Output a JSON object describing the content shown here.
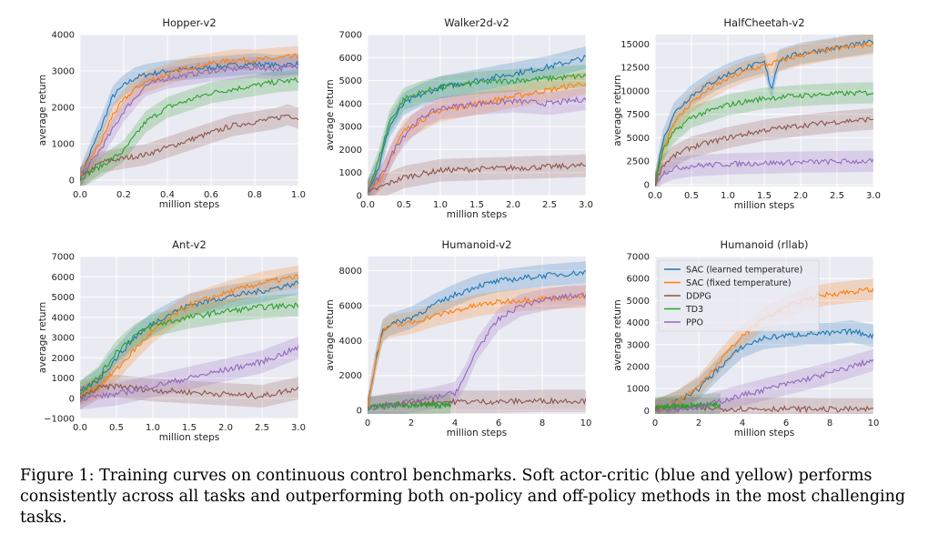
{
  "caption": {
    "label": "Figure 1:",
    "text": "Training curves on continuous control benchmarks. Soft actor-critic (blue and yellow) performs consistently across all tasks and outperforming both on-policy and off-policy methods in the most challenging tasks."
  },
  "colors": {
    "sac_learned": "#1f77b4",
    "sac_fixed": "#ff7f0e",
    "ddpg": "#8c564b",
    "td3": "#2ca02c",
    "ppo": "#9467bd",
    "plot_bg": "#eaeaf2",
    "grid": "#ffffff"
  },
  "legend": {
    "placement": "top-left of Humanoid (rllab) panel",
    "entries": [
      "SAC (learned temperature)",
      "SAC (fixed temperature)",
      "DDPG",
      "TD3",
      "PPO"
    ]
  },
  "chart_data": [
    {
      "type": "line",
      "title": "Hopper-v2",
      "xlabel": "million steps",
      "ylabel": "average return",
      "xlim": [
        0,
        1.0
      ],
      "ylim": [
        -150,
        4000
      ],
      "xticks": [
        0,
        0.2,
        0.4,
        0.6,
        0.8,
        1.0
      ],
      "xtick_labels": [
        "0.0",
        "0.2",
        "0.4",
        "0.6",
        "0.8",
        "1.0"
      ],
      "yticks": [
        0,
        1000,
        2000,
        3000,
        4000
      ],
      "ytick_labels": [
        "0",
        "1000",
        "2000",
        "3000",
        "4000"
      ],
      "grid": true,
      "series": [
        {
          "name": "SAC (learned temperature)",
          "x": [
            0,
            0.05,
            0.1,
            0.15,
            0.2,
            0.25,
            0.3,
            0.4,
            0.5,
            0.6,
            0.7,
            0.8,
            0.9,
            1.0
          ],
          "y": [
            50,
            800,
            1500,
            2300,
            2600,
            2800,
            2900,
            3000,
            3050,
            3100,
            3150,
            3200,
            3150,
            3200
          ]
        },
        {
          "name": "SAC (fixed temperature)",
          "x": [
            0,
            0.05,
            0.1,
            0.15,
            0.2,
            0.25,
            0.3,
            0.4,
            0.5,
            0.6,
            0.7,
            0.8,
            0.9,
            1.0
          ],
          "y": [
            50,
            600,
            1100,
            1800,
            2200,
            2500,
            2700,
            2900,
            3100,
            3200,
            3300,
            3300,
            3350,
            3400
          ]
        },
        {
          "name": "DDPG",
          "x": [
            0,
            0.1,
            0.2,
            0.3,
            0.4,
            0.5,
            0.6,
            0.7,
            0.8,
            0.9,
            0.95,
            1.0
          ],
          "y": [
            50,
            500,
            600,
            700,
            900,
            1100,
            1300,
            1500,
            1600,
            1700,
            1800,
            1700
          ]
        },
        {
          "name": "TD3",
          "x": [
            0,
            0.1,
            0.2,
            0.3,
            0.4,
            0.5,
            0.6,
            0.7,
            0.8,
            0.9,
            1.0
          ],
          "y": [
            50,
            400,
            800,
            1600,
            2000,
            2200,
            2400,
            2500,
            2600,
            2700,
            2750
          ]
        },
        {
          "name": "PPO",
          "x": [
            0,
            0.1,
            0.2,
            0.3,
            0.4,
            0.5,
            0.6,
            0.7,
            0.8,
            0.9,
            1.0
          ],
          "y": [
            50,
            900,
            1900,
            2600,
            2800,
            2900,
            3000,
            3050,
            3100,
            3050,
            3150
          ]
        }
      ]
    },
    {
      "type": "line",
      "title": "Walker2d-v2",
      "xlabel": "million steps",
      "ylabel": "average return",
      "xlim": [
        0,
        3.0
      ],
      "ylim": [
        0,
        7000
      ],
      "xticks": [
        0,
        0.5,
        1.0,
        1.5,
        2.0,
        2.5,
        3.0
      ],
      "xtick_labels": [
        "0.0",
        "0.5",
        "1.0",
        "1.5",
        "2.0",
        "2.5",
        "3.0"
      ],
      "yticks": [
        0,
        1000,
        2000,
        3000,
        4000,
        5000,
        6000,
        7000
      ],
      "ytick_labels": [
        "0",
        "1000",
        "2000",
        "3000",
        "4000",
        "5000",
        "6000",
        "7000"
      ],
      "grid": true,
      "series": [
        {
          "name": "SAC (learned temperature)",
          "x": [
            0,
            0.15,
            0.3,
            0.5,
            0.75,
            1.0,
            1.5,
            2.0,
            2.5,
            3.0
          ],
          "y": [
            200,
            1200,
            3000,
            4000,
            4400,
            4700,
            5000,
            5300,
            5600,
            6000
          ]
        },
        {
          "name": "SAC (fixed temperature)",
          "x": [
            0,
            0.2,
            0.3,
            0.5,
            0.75,
            1.0,
            1.5,
            2.0,
            2.5,
            3.0
          ],
          "y": [
            200,
            800,
            1600,
            2800,
            3300,
            3700,
            4000,
            4300,
            4600,
            4900
          ]
        },
        {
          "name": "DDPG",
          "x": [
            0,
            0.2,
            0.5,
            1.0,
            1.5,
            2.0,
            2.5,
            3.0
          ],
          "y": [
            100,
            400,
            800,
            1100,
            1150,
            1200,
            1250,
            1300
          ]
        },
        {
          "name": "TD3",
          "x": [
            0,
            0.15,
            0.3,
            0.5,
            0.75,
            1.0,
            1.5,
            2.0,
            2.5,
            3.0
          ],
          "y": [
            200,
            1500,
            3200,
            4200,
            4500,
            4700,
            4900,
            5000,
            5100,
            5200
          ]
        },
        {
          "name": "PPO",
          "x": [
            0,
            0.2,
            0.4,
            0.6,
            0.8,
            1.0,
            1.5,
            2.0,
            2.5,
            3.0
          ],
          "y": [
            200,
            900,
            2200,
            3000,
            3500,
            3800,
            4000,
            4100,
            4000,
            4200
          ]
        }
      ]
    },
    {
      "type": "line",
      "title": "HalfCheetah-v2",
      "xlabel": "million steps",
      "ylabel": "average return",
      "xlim": [
        0,
        3.0
      ],
      "ylim": [
        -200,
        16000
      ],
      "xticks": [
        0,
        0.5,
        1.0,
        1.5,
        2.0,
        2.5,
        3.0
      ],
      "xtick_labels": [
        "0.0",
        "0.5",
        "1.0",
        "1.5",
        "2.0",
        "2.5",
        "3.0"
      ],
      "yticks": [
        0,
        2500,
        5000,
        7500,
        10000,
        12500,
        15000
      ],
      "ytick_labels": [
        "0",
        "2500",
        "5000",
        "7500",
        "10000",
        "12500",
        "15000"
      ],
      "grid": true,
      "series": [
        {
          "name": "SAC (learned temperature)",
          "x": [
            0,
            0.1,
            0.25,
            0.5,
            0.75,
            1.0,
            1.25,
            1.5,
            1.6,
            1.7,
            2.0,
            2.5,
            3.0
          ],
          "y": [
            200,
            4500,
            7500,
            9500,
            10800,
            11800,
            12500,
            13000,
            10200,
            13300,
            14000,
            14600,
            15200
          ]
        },
        {
          "name": "SAC (fixed temperature)",
          "x": [
            0,
            0.1,
            0.25,
            0.5,
            0.75,
            1.0,
            1.25,
            1.5,
            2.0,
            2.5,
            3.0
          ],
          "y": [
            200,
            3500,
            6500,
            8800,
            10200,
            11300,
            12100,
            12700,
            13800,
            14500,
            15000
          ]
        },
        {
          "name": "DDPG",
          "x": [
            0,
            0.1,
            0.25,
            0.5,
            1.0,
            1.5,
            2.0,
            2.5,
            3.0
          ],
          "y": [
            100,
            2000,
            3000,
            4000,
            5000,
            5800,
            6300,
            6700,
            7000
          ]
        },
        {
          "name": "TD3",
          "x": [
            0,
            0.1,
            0.25,
            0.5,
            1.0,
            1.5,
            2.0,
            2.5,
            3.0
          ],
          "y": [
            100,
            3500,
            5500,
            7200,
            8500,
            9200,
            9500,
            9700,
            9800
          ]
        },
        {
          "name": "PPO",
          "x": [
            0,
            0.1,
            0.25,
            0.5,
            1.0,
            1.5,
            2.0,
            2.5,
            3.0
          ],
          "y": [
            100,
            1200,
            1700,
            2000,
            2200,
            2300,
            2400,
            2450,
            2500
          ]
        }
      ]
    },
    {
      "type": "line",
      "title": "Ant-v2",
      "xlabel": "million steps",
      "ylabel": "average return",
      "xlim": [
        0,
        3.0
      ],
      "ylim": [
        -1000,
        7000
      ],
      "xticks": [
        0,
        0.5,
        1.0,
        1.5,
        2.0,
        2.5,
        3.0
      ],
      "xtick_labels": [
        "0.0",
        "0.5",
        "1.0",
        "1.5",
        "2.0",
        "2.5",
        "3.0"
      ],
      "yticks": [
        -1000,
        0,
        1000,
        2000,
        3000,
        4000,
        5000,
        6000,
        7000
      ],
      "ytick_labels": [
        "−1000",
        "0",
        "1000",
        "2000",
        "3000",
        "4000",
        "5000",
        "6000",
        "7000"
      ],
      "grid": true,
      "series": [
        {
          "name": "SAC (learned temperature)",
          "x": [
            0,
            0.25,
            0.5,
            0.75,
            1.0,
            1.25,
            1.5,
            2.0,
            2.5,
            3.0
          ],
          "y": [
            300,
            900,
            2000,
            3000,
            3700,
            4200,
            4600,
            5000,
            5300,
            5700
          ]
        },
        {
          "name": "SAC (fixed temperature)",
          "x": [
            0,
            0.25,
            0.5,
            0.75,
            1.0,
            1.25,
            1.5,
            2.0,
            2.5,
            3.0
          ],
          "y": [
            200,
            600,
            1400,
            2400,
            3300,
            4000,
            4600,
            5200,
            5700,
            6000
          ]
        },
        {
          "name": "DDPG",
          "x": [
            0,
            0.25,
            0.5,
            1.0,
            1.5,
            2.0,
            2.5,
            3.0
          ],
          "y": [
            0,
            500,
            600,
            400,
            300,
            200,
            100,
            500
          ]
        },
        {
          "name": "TD3",
          "x": [
            0,
            0.25,
            0.5,
            0.75,
            1.0,
            1.5,
            2.0,
            2.5,
            3.0
          ],
          "y": [
            300,
            1000,
            2300,
            3100,
            3600,
            4000,
            4300,
            4500,
            4600
          ]
        },
        {
          "name": "PPO",
          "x": [
            0,
            0.5,
            1.0,
            1.5,
            2.0,
            2.5,
            3.0
          ],
          "y": [
            0,
            200,
            600,
            1000,
            1400,
            1800,
            2500
          ]
        }
      ]
    },
    {
      "type": "line",
      "title": "Humanoid-v2",
      "xlabel": "million steps",
      "ylabel": "average return",
      "xlim": [
        0,
        10
      ],
      "ylim": [
        -200,
        8800
      ],
      "xticks": [
        0,
        2,
        4,
        6,
        8,
        10
      ],
      "xtick_labels": [
        "0",
        "2",
        "4",
        "6",
        "8",
        "10"
      ],
      "yticks": [
        0,
        2000,
        4000,
        6000,
        8000
      ],
      "ytick_labels": [
        "0",
        "2000",
        "4000",
        "6000",
        "8000"
      ],
      "grid": true,
      "series": [
        {
          "name": "SAC (learned temperature)",
          "x": [
            0,
            0.4,
            0.7,
            1.0,
            2.0,
            3.0,
            4.0,
            5.0,
            6.0,
            8.0,
            10.0
          ],
          "y": [
            200,
            3000,
            4600,
            4900,
            5300,
            6000,
            6600,
            7100,
            7400,
            7700,
            7900
          ]
        },
        {
          "name": "SAC (fixed temperature)",
          "x": [
            0,
            0.4,
            0.7,
            1.0,
            2.0,
            3.0,
            4.0,
            5.0,
            6.0,
            8.0,
            10.0
          ],
          "y": [
            200,
            3000,
            4500,
            4800,
            5000,
            5400,
            5700,
            6000,
            6200,
            6400,
            6500
          ]
        },
        {
          "name": "DDPG",
          "x": [
            0,
            1,
            2,
            4,
            6,
            8,
            10
          ],
          "y": [
            150,
            350,
            450,
            500,
            500,
            550,
            550
          ]
        },
        {
          "name": "TD3",
          "x": [
            0,
            1,
            2,
            3,
            3.8
          ],
          "y": [
            150,
            250,
            300,
            300,
            300
          ]
        },
        {
          "name": "PPO",
          "x": [
            0,
            1,
            2,
            3,
            4,
            4.5,
            5,
            6,
            7,
            8,
            9,
            10
          ],
          "y": [
            100,
            300,
            500,
            700,
            1000,
            2000,
            3500,
            5200,
            6000,
            6300,
            6500,
            6600
          ]
        }
      ]
    },
    {
      "type": "line",
      "title": "Humanoid (rllab)",
      "xlabel": "million steps",
      "ylabel": "average return",
      "xlim": [
        0,
        10
      ],
      "ylim": [
        -150,
        7000
      ],
      "xticks": [
        0,
        2,
        4,
        6,
        8,
        10
      ],
      "xtick_labels": [
        "0",
        "2",
        "4",
        "6",
        "8",
        "10"
      ],
      "yticks": [
        0,
        1000,
        2000,
        3000,
        4000,
        5000,
        6000,
        7000
      ],
      "ytick_labels": [
        "0",
        "1000",
        "2000",
        "3000",
        "4000",
        "5000",
        "6000",
        "7000"
      ],
      "grid": true,
      "series": [
        {
          "name": "SAC (learned temperature)",
          "x": [
            0,
            1,
            2,
            3,
            4,
            5,
            6,
            7,
            8,
            9,
            10
          ],
          "y": [
            0,
            400,
            1000,
            2000,
            2900,
            3300,
            3400,
            3500,
            3500,
            3600,
            3400
          ]
        },
        {
          "name": "SAC (fixed temperature)",
          "x": [
            0,
            1,
            2,
            3,
            4,
            5,
            6,
            7,
            8,
            9,
            10
          ],
          "y": [
            0,
            400,
            1100,
            2300,
            3400,
            4200,
            4700,
            5100,
            5300,
            5400,
            5500
          ]
        },
        {
          "name": "DDPG",
          "x": [
            0,
            2,
            4,
            6,
            8,
            10
          ],
          "y": [
            100,
            100,
            80,
            80,
            60,
            60
          ]
        },
        {
          "name": "TD3",
          "x": [
            0,
            1,
            2,
            3
          ],
          "y": [
            100,
            200,
            250,
            300
          ]
        },
        {
          "name": "PPO",
          "x": [
            0,
            2,
            4,
            6,
            8,
            10
          ],
          "y": [
            0,
            150,
            700,
            1200,
            1700,
            2300
          ]
        }
      ]
    }
  ]
}
